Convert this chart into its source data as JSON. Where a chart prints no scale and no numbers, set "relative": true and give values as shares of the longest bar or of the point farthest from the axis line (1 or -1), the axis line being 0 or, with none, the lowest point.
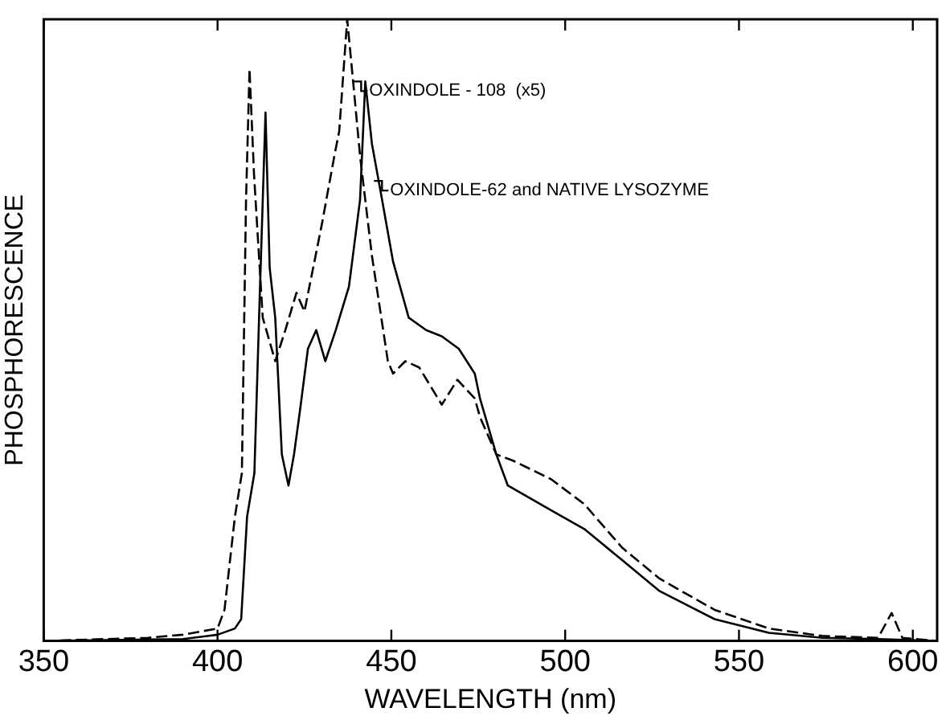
{
  "chart_data": {
    "type": "line",
    "xlabel": "WAVELENGTH (nm)",
    "ylabel": "PHOSPHORESCENCE",
    "relative": true,
    "xlim": [
      350,
      607
    ],
    "xticks": [
      350,
      400,
      450,
      500,
      550,
      600
    ],
    "grid": false,
    "legend": false,
    "marker": "none",
    "annotations": [
      {
        "text": "OXINDOLE - 108  (x5)",
        "x": 439,
        "y": 0.9
      },
      {
        "text": "OXINDOLE-62 and NATIVE LYSOZYME",
        "x": 445,
        "y": 0.74
      }
    ],
    "series": [
      {
        "color": "#000000",
        "line_style": "dashed",
        "x": [
          350,
          380,
          390,
          400,
          402,
          405,
          407,
          408.2,
          409.2,
          410.5,
          413,
          416.6,
          419.5,
          422.7,
          425,
          430,
          433.6,
          435,
          437.3,
          439,
          441,
          444.4,
          449,
          450.5,
          454,
          458,
          464.5,
          469,
          474,
          475.5,
          480.2,
          485,
          496,
          505.5,
          516.4,
          527.2,
          543,
          558.6,
          574,
          590,
          593.9,
          597,
          607
        ],
        "values": [
          0,
          0.005,
          0.01,
          0.02,
          0.05,
          0.2,
          0.27,
          0.71,
          0.92,
          0.75,
          0.52,
          0.45,
          0.5,
          0.56,
          0.53,
          0.67,
          0.78,
          0.82,
          1,
          0.9,
          0.78,
          0.62,
          0.45,
          0.43,
          0.45,
          0.44,
          0.38,
          0.42,
          0.39,
          0.36,
          0.3,
          0.29,
          0.26,
          0.22,
          0.15,
          0.1,
          0.05,
          0.02,
          0.008,
          0.005,
          0.045,
          0.005,
          0
        ]
      },
      {
        "color": "#000000",
        "line_style": "solid",
        "x": [
          350,
          390,
          400,
          405,
          406.8,
          408.5,
          410.6,
          412,
          413.8,
          415,
          416.6,
          418.5,
          420.4,
          422,
          423.7,
          426,
          428.4,
          431,
          434,
          437.8,
          441,
          442.5,
          444.4,
          447,
          450.5,
          455,
          460,
          464.5,
          469.4,
          474,
          475.5,
          480.2,
          483.5,
          496,
          505.5,
          516.4,
          527.2,
          543,
          558.6,
          574,
          590,
          607
        ],
        "values": [
          0,
          0.003,
          0.01,
          0.02,
          0.035,
          0.2,
          0.27,
          0.53,
          0.85,
          0.6,
          0.52,
          0.3,
          0.25,
          0.3,
          0.37,
          0.47,
          0.5,
          0.45,
          0.5,
          0.57,
          0.71,
          0.9,
          0.8,
          0.72,
          0.61,
          0.52,
          0.5,
          0.49,
          0.47,
          0.43,
          0.39,
          0.3,
          0.25,
          0.21,
          0.18,
          0.13,
          0.08,
          0.035,
          0.013,
          0.005,
          0.003,
          0
        ]
      }
    ]
  }
}
